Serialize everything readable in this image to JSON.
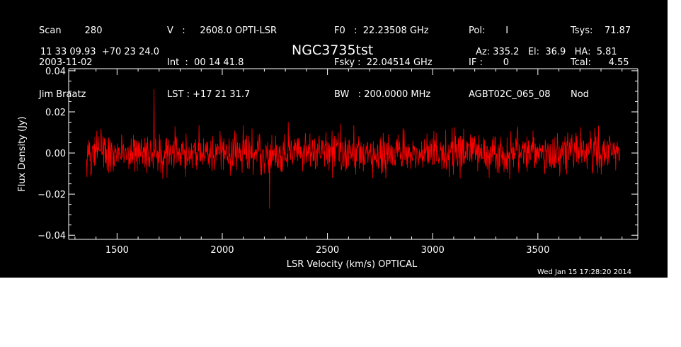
{
  "header": {
    "col1": [
      "Scan        280",
      "2003-11-02",
      "Jim Braatz"
    ],
    "col2": [
      "V   :     2608.0 OPTI-LSR",
      "Int  :  00 14 41.8",
      "LST : +17 21 31.7"
    ],
    "col3": [
      "F0   :  22.23508 GHz",
      "Fsky :  22.04514 GHz",
      "BW   : 200.0000 MHz"
    ],
    "col4": [
      "Pol:       I",
      "IF :       0",
      "AGBT02C_065_08"
    ],
    "col5": [
      "Tsys:    71.87",
      "Tcal:      4.55",
      "Nod"
    ],
    "coords": "11 33 09.93  +70 23 24.0",
    "source": "NGC3735tst",
    "azelha": "Az: 335.2   El:  36.9   HA:  5.81"
  },
  "timestamp": "Wed Jan 15 17:28:20 2014",
  "colors": {
    "background": "#000000",
    "axes": "#ffffff",
    "series": "#ff0000"
  },
  "chart_data": {
    "type": "line",
    "xlabel": "LSR Velocity (km/s) OPTICAL",
    "ylabel": "Flux Density (Jy)",
    "xlim": [
      1270,
      3975
    ],
    "ylim": [
      -0.042,
      0.041
    ],
    "xticks": [
      1500,
      2000,
      2500,
      3000,
      3500
    ],
    "xtick_labels": [
      "1500",
      "2000",
      "2500",
      "3000",
      "3500"
    ],
    "yticks": [
      -0.04,
      -0.02,
      0.0,
      0.02,
      0.04
    ],
    "ytick_labels": [
      "−0.04",
      "−0.02",
      "0.00",
      "0.02",
      "0.04"
    ],
    "series": [
      {
        "x_range": [
          1355,
          3890
        ],
        "noise_rms": 0.009,
        "mean": 0.0,
        "peak_max": 0.031,
        "peak_min": -0.027,
        "color": "#ff0000"
      }
    ]
  }
}
